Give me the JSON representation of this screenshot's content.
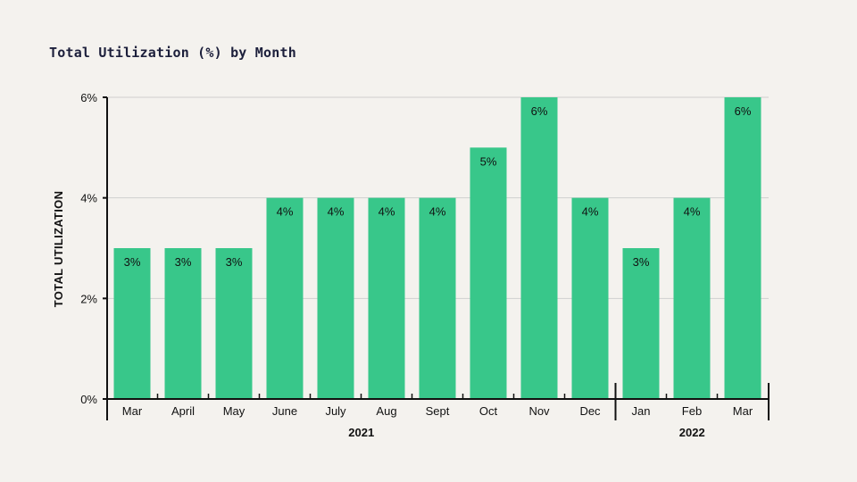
{
  "chart_data": {
    "type": "bar",
    "title": "Total Utilization (%) by Month",
    "ylabel": "TOTAL UTILIZATION",
    "xlabel": "",
    "ylim": [
      0,
      6
    ],
    "yticks": [
      0,
      2,
      4,
      6
    ],
    "ytick_labels": [
      "0%",
      "2%",
      "4%",
      "6%"
    ],
    "categories": [
      "Mar",
      "April",
      "May",
      "June",
      "July",
      "Aug",
      "Sept",
      "Oct",
      "Nov",
      "Dec",
      "Jan",
      "Feb",
      "Mar"
    ],
    "values": [
      3,
      3,
      3,
      4,
      4,
      4,
      4,
      5,
      6,
      4,
      3,
      4,
      6
    ],
    "value_labels": [
      "3%",
      "3%",
      "3%",
      "4%",
      "4%",
      "4%",
      "4%",
      "5%",
      "6%",
      "4%",
      "3%",
      "4%",
      "6%"
    ],
    "groups": [
      {
        "label": "2021",
        "start": 0,
        "end": 9
      },
      {
        "label": "2022",
        "start": 10,
        "end": 12
      }
    ],
    "grid": true,
    "bar_color": "#38c78a",
    "grid_color": "#cfcfcf",
    "axis_color": "#111111"
  }
}
